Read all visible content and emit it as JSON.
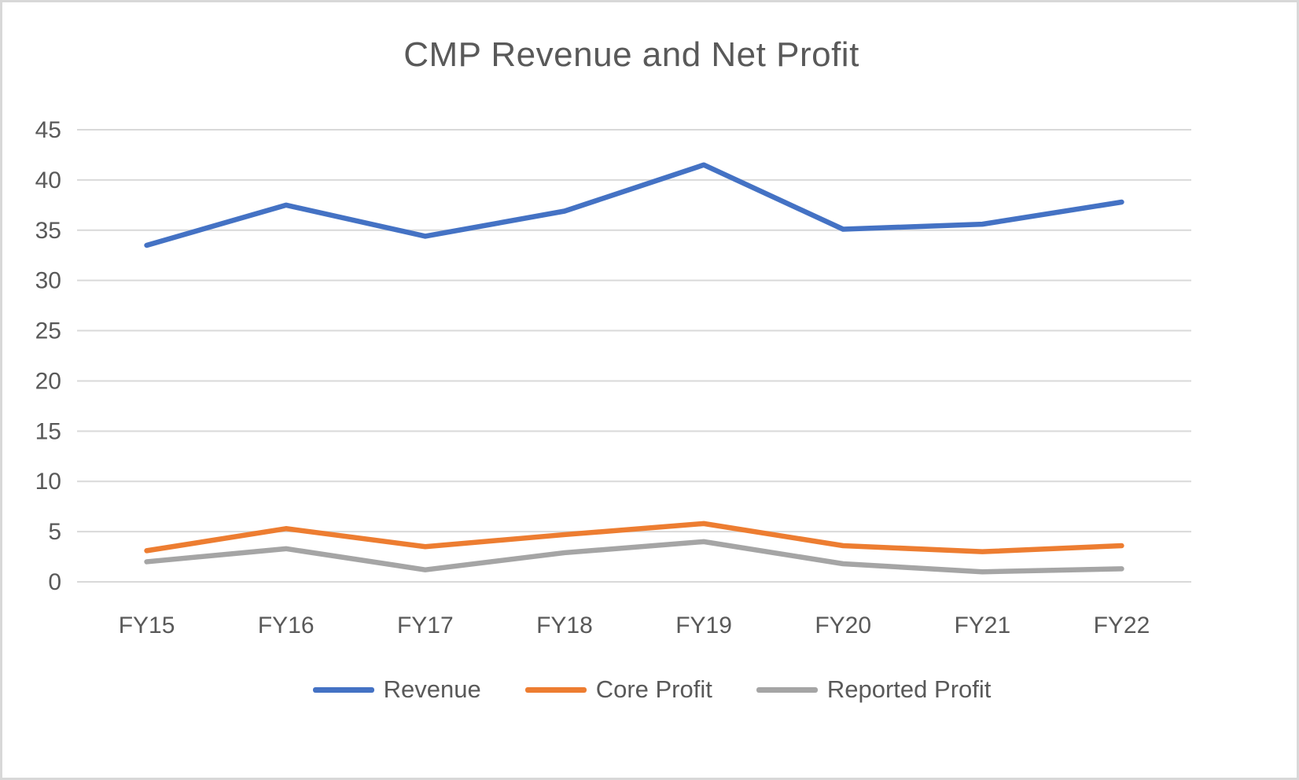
{
  "chart_data": {
    "type": "line",
    "title": "CMP Revenue and Net Profit",
    "categories": [
      "FY15",
      "FY16",
      "FY17",
      "FY18",
      "FY19",
      "FY20",
      "FY21",
      "FY22"
    ],
    "series": [
      {
        "name": "Revenue",
        "color": "#4472C4",
        "values": [
          33.5,
          37.5,
          34.4,
          36.9,
          41.5,
          35.1,
          35.6,
          37.8
        ]
      },
      {
        "name": "Core Profit",
        "color": "#ED7D31",
        "values": [
          3.1,
          5.3,
          3.5,
          4.7,
          5.8,
          3.6,
          3.0,
          3.6
        ]
      },
      {
        "name": "Reported Profit",
        "color": "#A5A5A5",
        "values": [
          2.0,
          3.3,
          1.2,
          2.9,
          4.0,
          1.8,
          1.0,
          1.3
        ]
      }
    ],
    "ylim": [
      0,
      45
    ],
    "ytick_step": 5,
    "ytick_labels": [
      "0",
      "5",
      "10",
      "15",
      "20",
      "25",
      "30",
      "35",
      "40",
      "45"
    ],
    "grid": "horizontal",
    "legend_position": "bottom",
    "colors": {
      "gridline": "#D9D9D9",
      "text": "#595959",
      "background": "#FFFFFF",
      "border": "#D8D8D8"
    }
  }
}
